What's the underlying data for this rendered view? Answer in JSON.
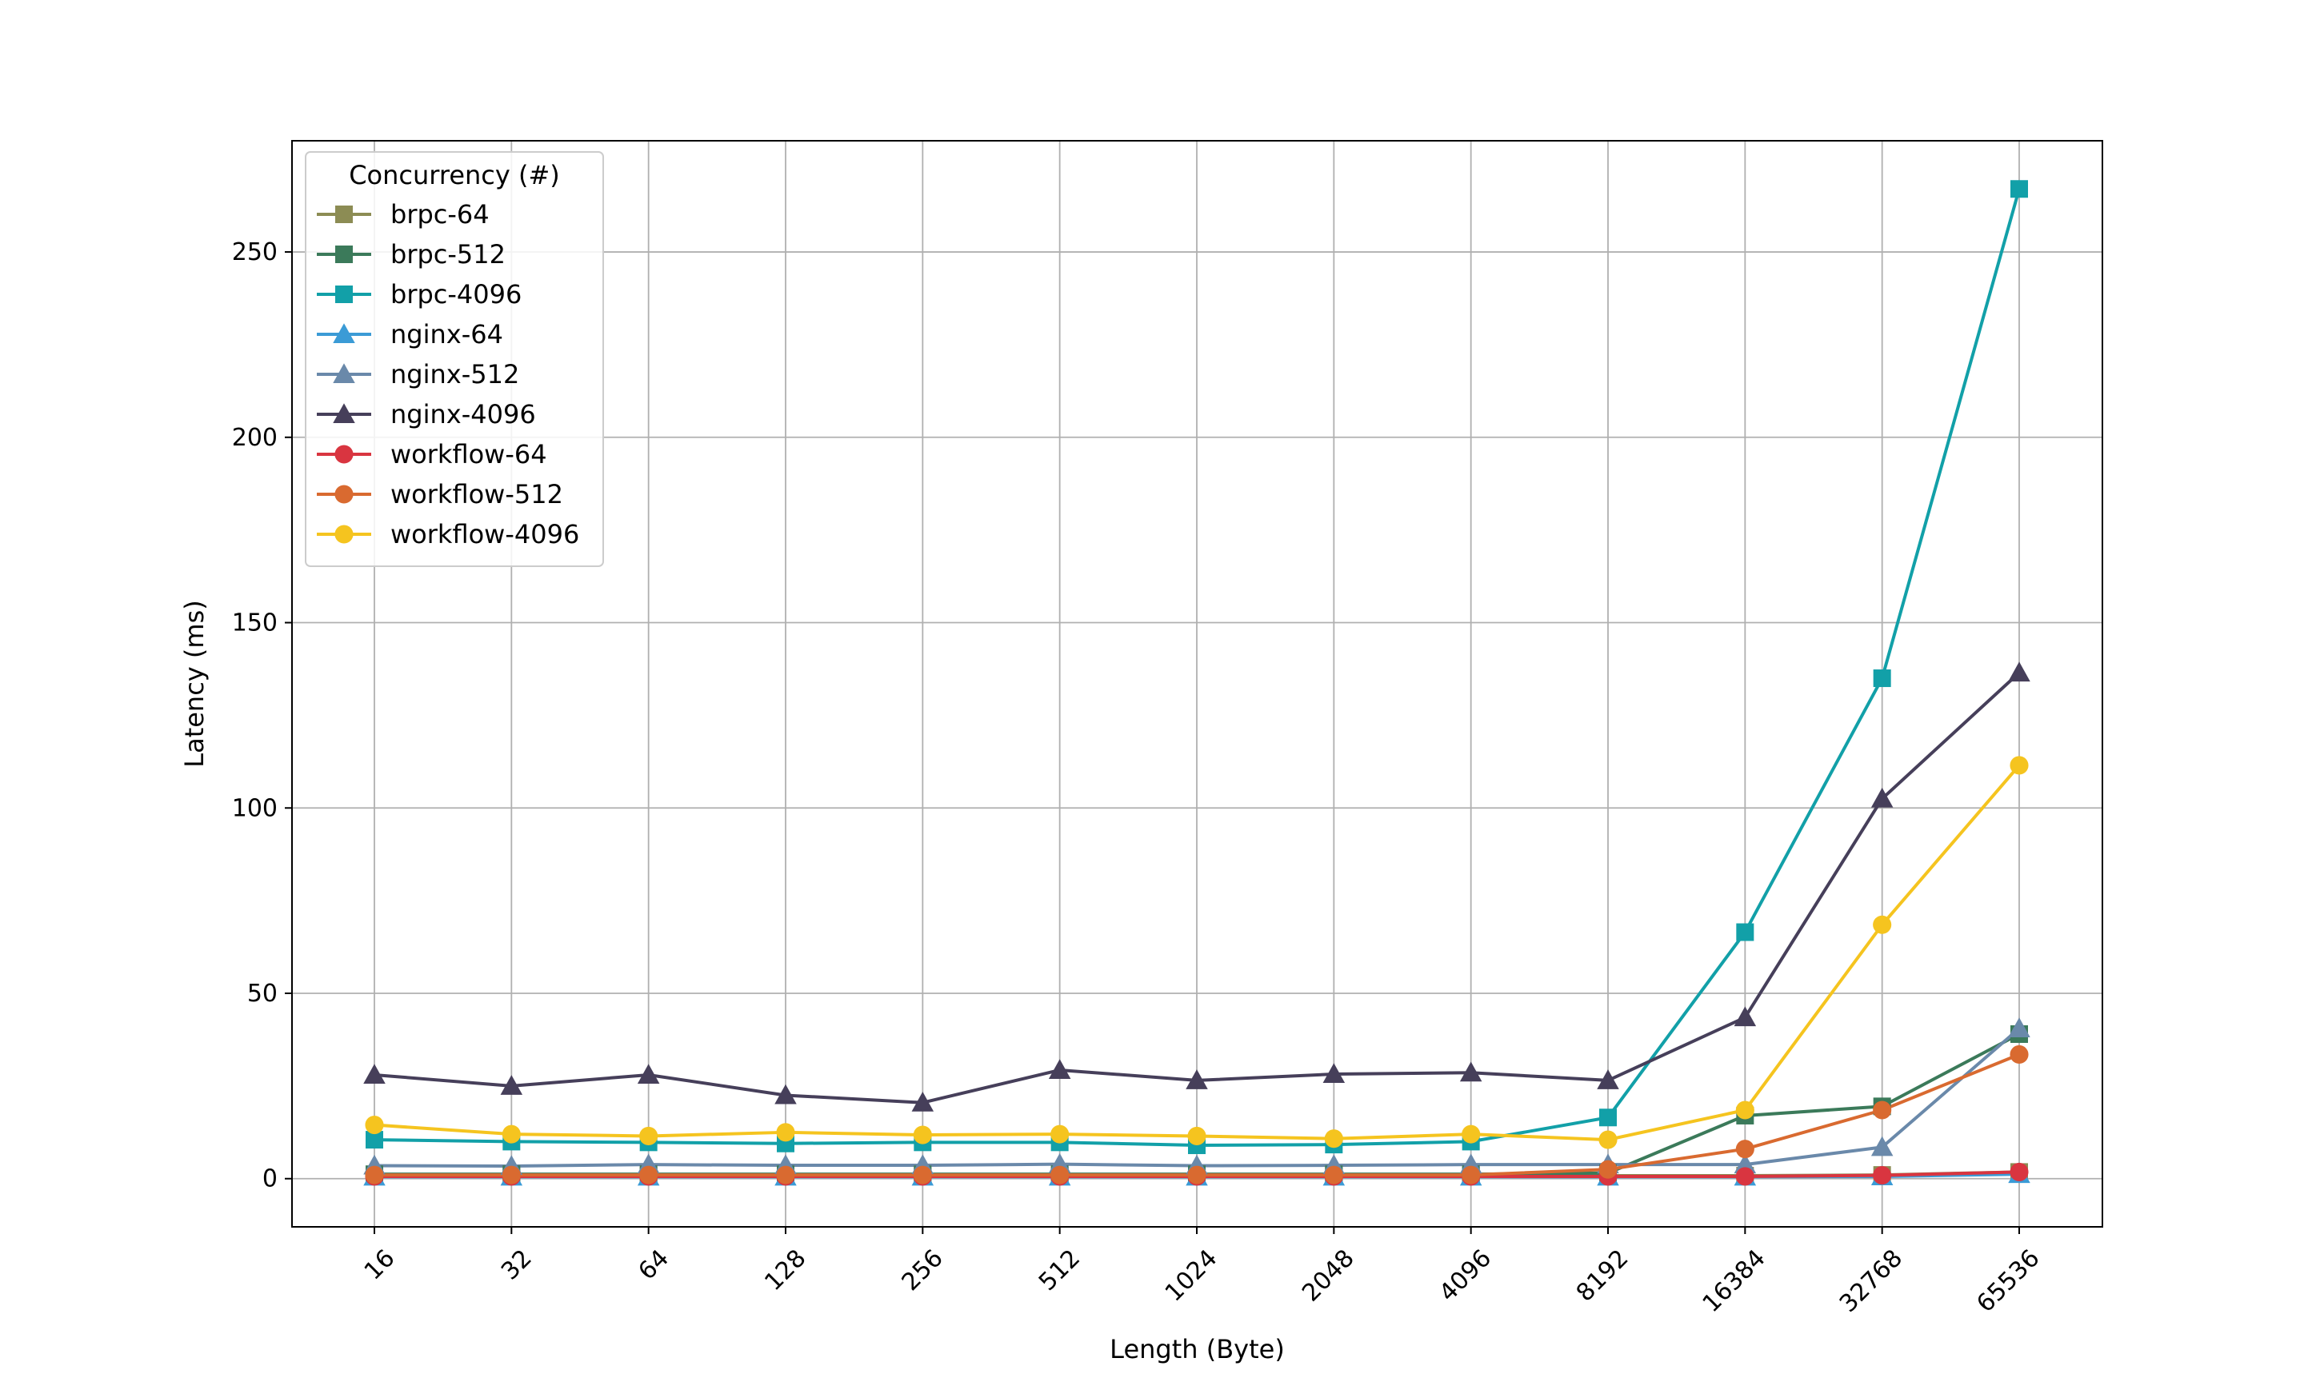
{
  "chart_data": {
    "type": "line",
    "title": "",
    "xlabel": "Length (Byte)",
    "ylabel": "Latency (ms)",
    "categories": [
      "16",
      "32",
      "64",
      "128",
      "256",
      "512",
      "1024",
      "2048",
      "4096",
      "8192",
      "16384",
      "32768",
      "65536"
    ],
    "ylim": [
      -13,
      280
    ],
    "yticks": [
      0,
      50,
      100,
      150,
      200,
      250
    ],
    "grid": true,
    "legend": {
      "title": "Concurrency (#)",
      "placement": "upper-left"
    },
    "series": [
      {
        "name": "brpc-64",
        "marker": "square",
        "color": "#8c8c54",
        "values": [
          0.8,
          0.8,
          0.8,
          0.8,
          0.8,
          0.8,
          0.8,
          0.8,
          0.8,
          0.8,
          0.8,
          1.0,
          1.8
        ]
      },
      {
        "name": "brpc-512",
        "marker": "square",
        "color": "#3b7a5a",
        "values": [
          1.2,
          1.2,
          1.2,
          1.2,
          1.2,
          1.2,
          1.2,
          1.2,
          1.2,
          1.5,
          17,
          19.5,
          39
        ]
      },
      {
        "name": "brpc-4096",
        "marker": "square",
        "color": "#12a0a8",
        "values": [
          10.5,
          10,
          9.8,
          9.5,
          9.8,
          9.8,
          9.0,
          9.2,
          10,
          16.5,
          66.5,
          135,
          267
        ]
      },
      {
        "name": "nginx-64",
        "marker": "triangle",
        "color": "#3b9bd6",
        "values": [
          0.5,
          0.5,
          0.5,
          0.5,
          0.5,
          0.5,
          0.5,
          0.5,
          0.5,
          0.5,
          0.5,
          0.6,
          1.2
        ]
      },
      {
        "name": "nginx-512",
        "marker": "triangle",
        "color": "#6a89aa",
        "values": [
          3.5,
          3.4,
          3.8,
          3.6,
          3.6,
          3.9,
          3.5,
          3.6,
          3.8,
          3.8,
          3.8,
          8.5,
          40.5
        ]
      },
      {
        "name": "nginx-4096",
        "marker": "triangle",
        "color": "#463f5a",
        "values": [
          28,
          25,
          28,
          22.5,
          20.5,
          29.3,
          26.5,
          28.2,
          28.6,
          26.5,
          43.5,
          102.5,
          136.5
        ]
      },
      {
        "name": "workflow-64",
        "marker": "circle",
        "color": "#d93540",
        "values": [
          0.6,
          0.6,
          0.6,
          0.6,
          0.6,
          0.6,
          0.6,
          0.6,
          0.6,
          0.6,
          0.6,
          0.9,
          1.8
        ]
      },
      {
        "name": "workflow-512",
        "marker": "circle",
        "color": "#d96a30",
        "values": [
          1.0,
          1.0,
          1.0,
          1.0,
          1.0,
          1.0,
          1.0,
          1.0,
          1.0,
          2.5,
          8,
          18.5,
          33.5
        ]
      },
      {
        "name": "workflow-4096",
        "marker": "circle",
        "color": "#f5c41f",
        "values": [
          14.5,
          12,
          11.5,
          12.5,
          11.8,
          12,
          11.5,
          10.8,
          12,
          10.5,
          18.5,
          68.5,
          111.5
        ]
      }
    ]
  }
}
